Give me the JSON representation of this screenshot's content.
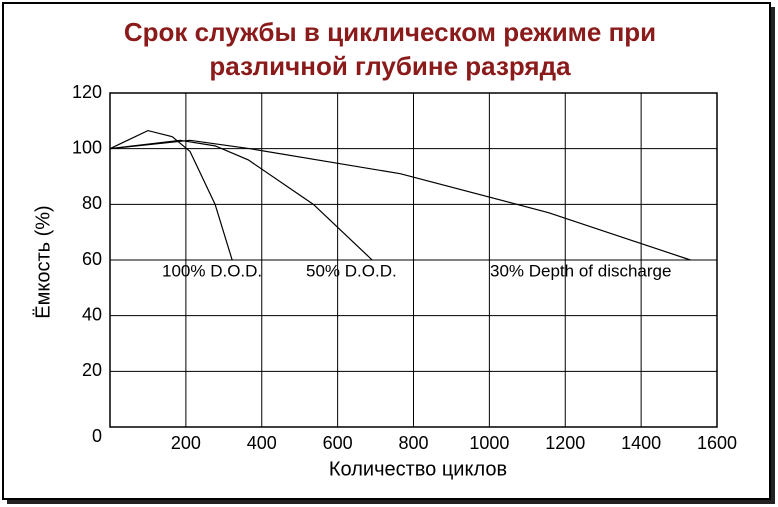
{
  "chart_data": {
    "type": "line",
    "title": [
      "Срок службы в циклическом режиме при",
      "различной глубине разряда"
    ],
    "x_label": "Количество циклов",
    "y_label": "Ёмкость (%)",
    "xlim": [
      0,
      1600
    ],
    "ylim": [
      0,
      120
    ],
    "xticks": [
      200,
      400,
      600,
      800,
      1000,
      1200,
      1400,
      1600
    ],
    "yticks": [
      0,
      20,
      40,
      60,
      80,
      100,
      120
    ],
    "grid": true,
    "series": [
      {
        "name": "100% D.O.D.",
        "color": "#000000",
        "x": [
          0,
          100,
          164,
          211,
          277,
          322
        ],
        "values": [
          100,
          106.5,
          104.3,
          99,
          80,
          60
        ]
      },
      {
        "name": "50% D.O.D.",
        "color": "#000000",
        "x": [
          0,
          185,
          277,
          364,
          536,
          691
        ],
        "values": [
          100,
          103,
          101,
          96,
          80,
          60
        ]
      },
      {
        "name": "30% Depth of discharge",
        "color": "#000000",
        "x": [
          0,
          211,
          369,
          765,
          1156,
          1530
        ],
        "values": [
          100,
          103,
          100,
          91,
          77,
          60
        ]
      }
    ]
  }
}
